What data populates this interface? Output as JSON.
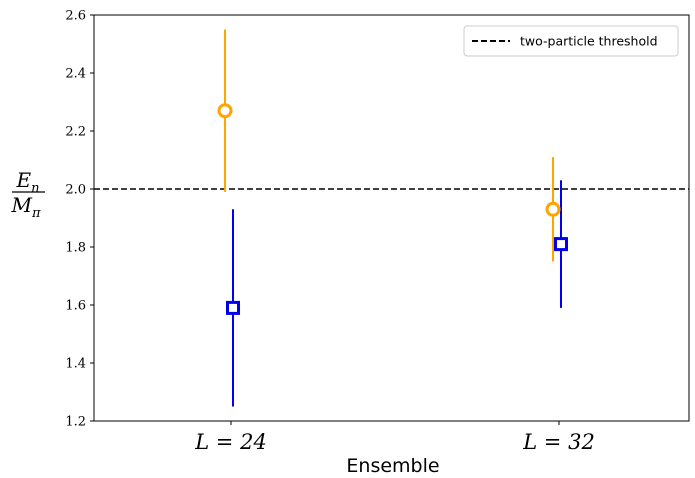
{
  "chart_data": {
    "type": "scatter",
    "categories": [
      "L = 24",
      "L = 32"
    ],
    "xlabel": "Ensemble",
    "ylabel": {
      "numerator": "E",
      "numerator_sub": "n",
      "denominator": "M",
      "denominator_sub": "π"
    },
    "ylim": [
      1.2,
      2.6
    ],
    "yticks": [
      1.2,
      1.4,
      1.6,
      1.8,
      2.0,
      2.2,
      2.4,
      2.6
    ],
    "ytick_labels": [
      "1.2",
      "1.4",
      "1.6",
      "1.8",
      "2.0",
      "2.2",
      "2.4",
      "2.6"
    ],
    "threshold": {
      "value": 2.0,
      "label": "two-particle threshold",
      "style": "dashed",
      "color": "#000000"
    },
    "legend_position": "top-right",
    "grid": false,
    "series": [
      {
        "marker": "circle",
        "color": "#FFA500",
        "points": [
          {
            "category": "L = 24",
            "y": 2.27,
            "ylow": 1.99,
            "yhigh": 2.55
          },
          {
            "category": "L = 32",
            "y": 1.93,
            "ylow": 1.75,
            "yhigh": 2.11
          }
        ]
      },
      {
        "marker": "square",
        "color": "#0000EE",
        "points": [
          {
            "category": "L = 24",
            "y": 1.59,
            "ylow": 1.25,
            "yhigh": 1.93
          },
          {
            "category": "L = 32",
            "y": 1.81,
            "ylow": 1.59,
            "yhigh": 2.03
          }
        ]
      }
    ]
  }
}
